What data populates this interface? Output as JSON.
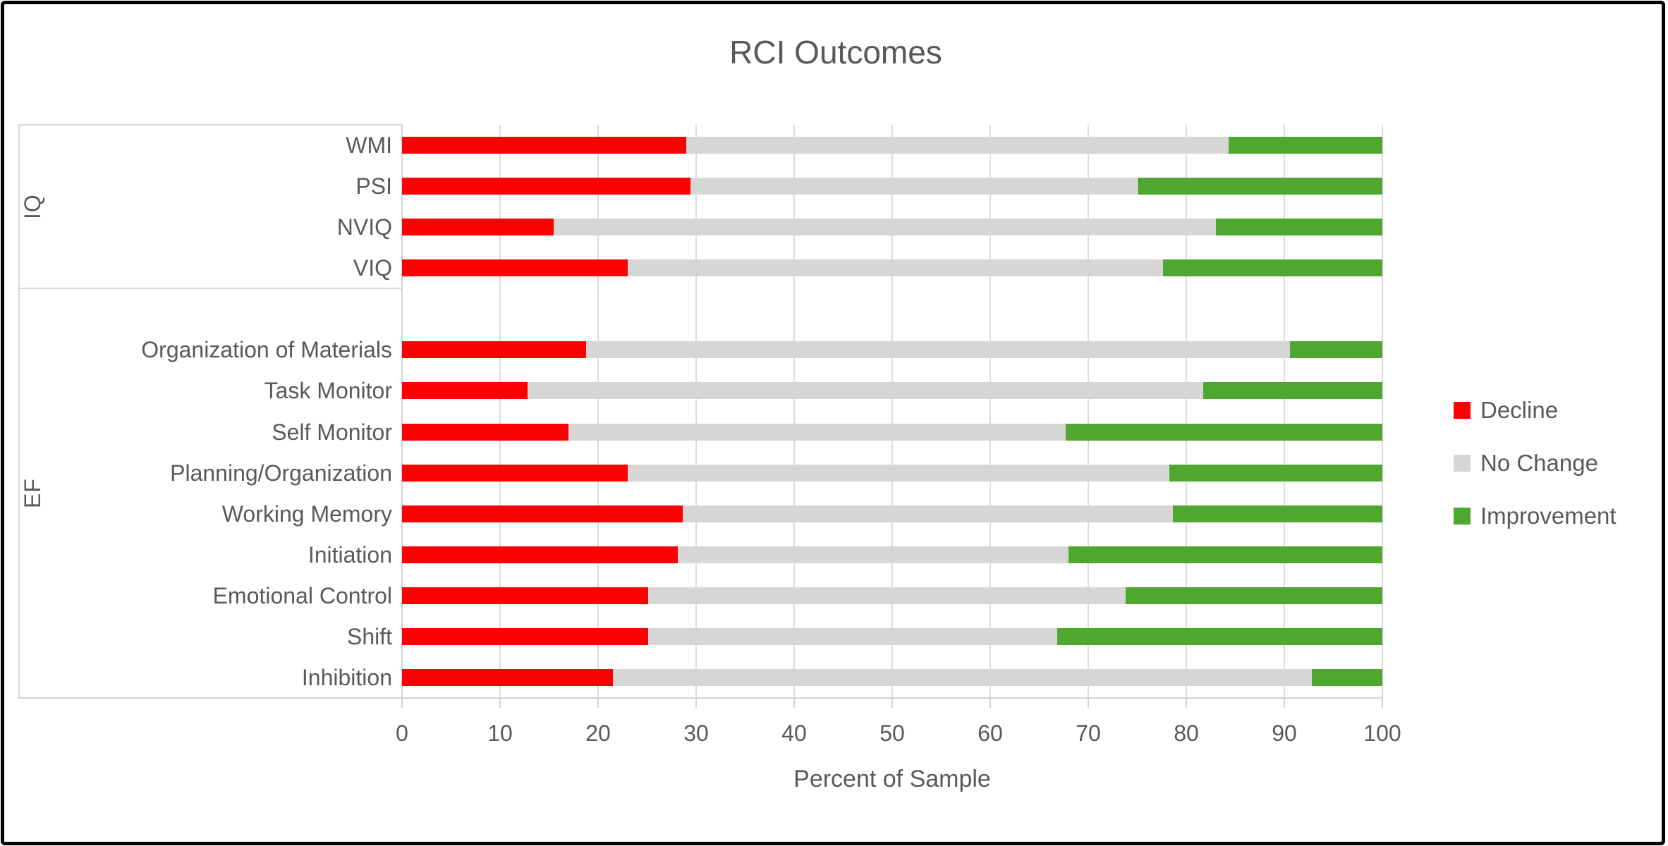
{
  "chart": {
    "title": "RCI Outcomes",
    "xlabel": "Percent of Sample"
  },
  "chart_data": {
    "type": "bar",
    "orientation": "horizontal",
    "stacked": true,
    "title": "RCI Outcomes",
    "xlabel": "Percent of Sample",
    "xlim": [
      0,
      100
    ],
    "x_ticks": [
      0,
      10,
      20,
      30,
      40,
      50,
      60,
      70,
      80,
      90,
      100
    ],
    "grid": true,
    "legend_position": "right",
    "legend": [
      {
        "name": "Decline",
        "color": "#FF0000"
      },
      {
        "name": "No Change",
        "color": "#D6D6D6"
      },
      {
        "name": "Improvement",
        "color": "#4EA72E"
      }
    ],
    "groups": [
      {
        "label": "IQ",
        "categories": [
          "WMI",
          "PSI",
          "NVIQ",
          "VIQ"
        ],
        "series": [
          {
            "name": "Decline",
            "values": [
              29.0,
              29.4,
              15.5,
              23.0
            ]
          },
          {
            "name": "No Change",
            "values": [
              55.3,
              45.6,
              67.5,
              54.6
            ]
          },
          {
            "name": "Improvement",
            "values": [
              15.7,
              25.0,
              17.0,
              22.4
            ]
          }
        ]
      },
      {
        "label": "EF",
        "categories": [
          "Organization of Materials",
          "Task Monitor",
          "Self Monitor",
          "Planning/Organization",
          "Working Memory",
          "Initiation",
          "Emotional Control",
          "Shift",
          "Inhibition"
        ],
        "series": [
          {
            "name": "Decline",
            "values": [
              18.8,
              12.8,
              17.0,
              23.0,
              28.6,
              28.1,
              25.1,
              25.1,
              21.5
            ]
          },
          {
            "name": "No Change",
            "values": [
              71.8,
              68.9,
              50.7,
              55.3,
              50.0,
              39.9,
              48.7,
              41.7,
              71.3
            ]
          },
          {
            "name": "Improvement",
            "values": [
              9.4,
              18.3,
              32.3,
              21.7,
              21.4,
              32.0,
              26.2,
              33.2,
              7.2
            ]
          }
        ]
      }
    ],
    "colors": {
      "decline": "#FF0000",
      "no_change": "#D6D6D6",
      "improvement": "#4EA72E",
      "text": "#595959"
    }
  }
}
